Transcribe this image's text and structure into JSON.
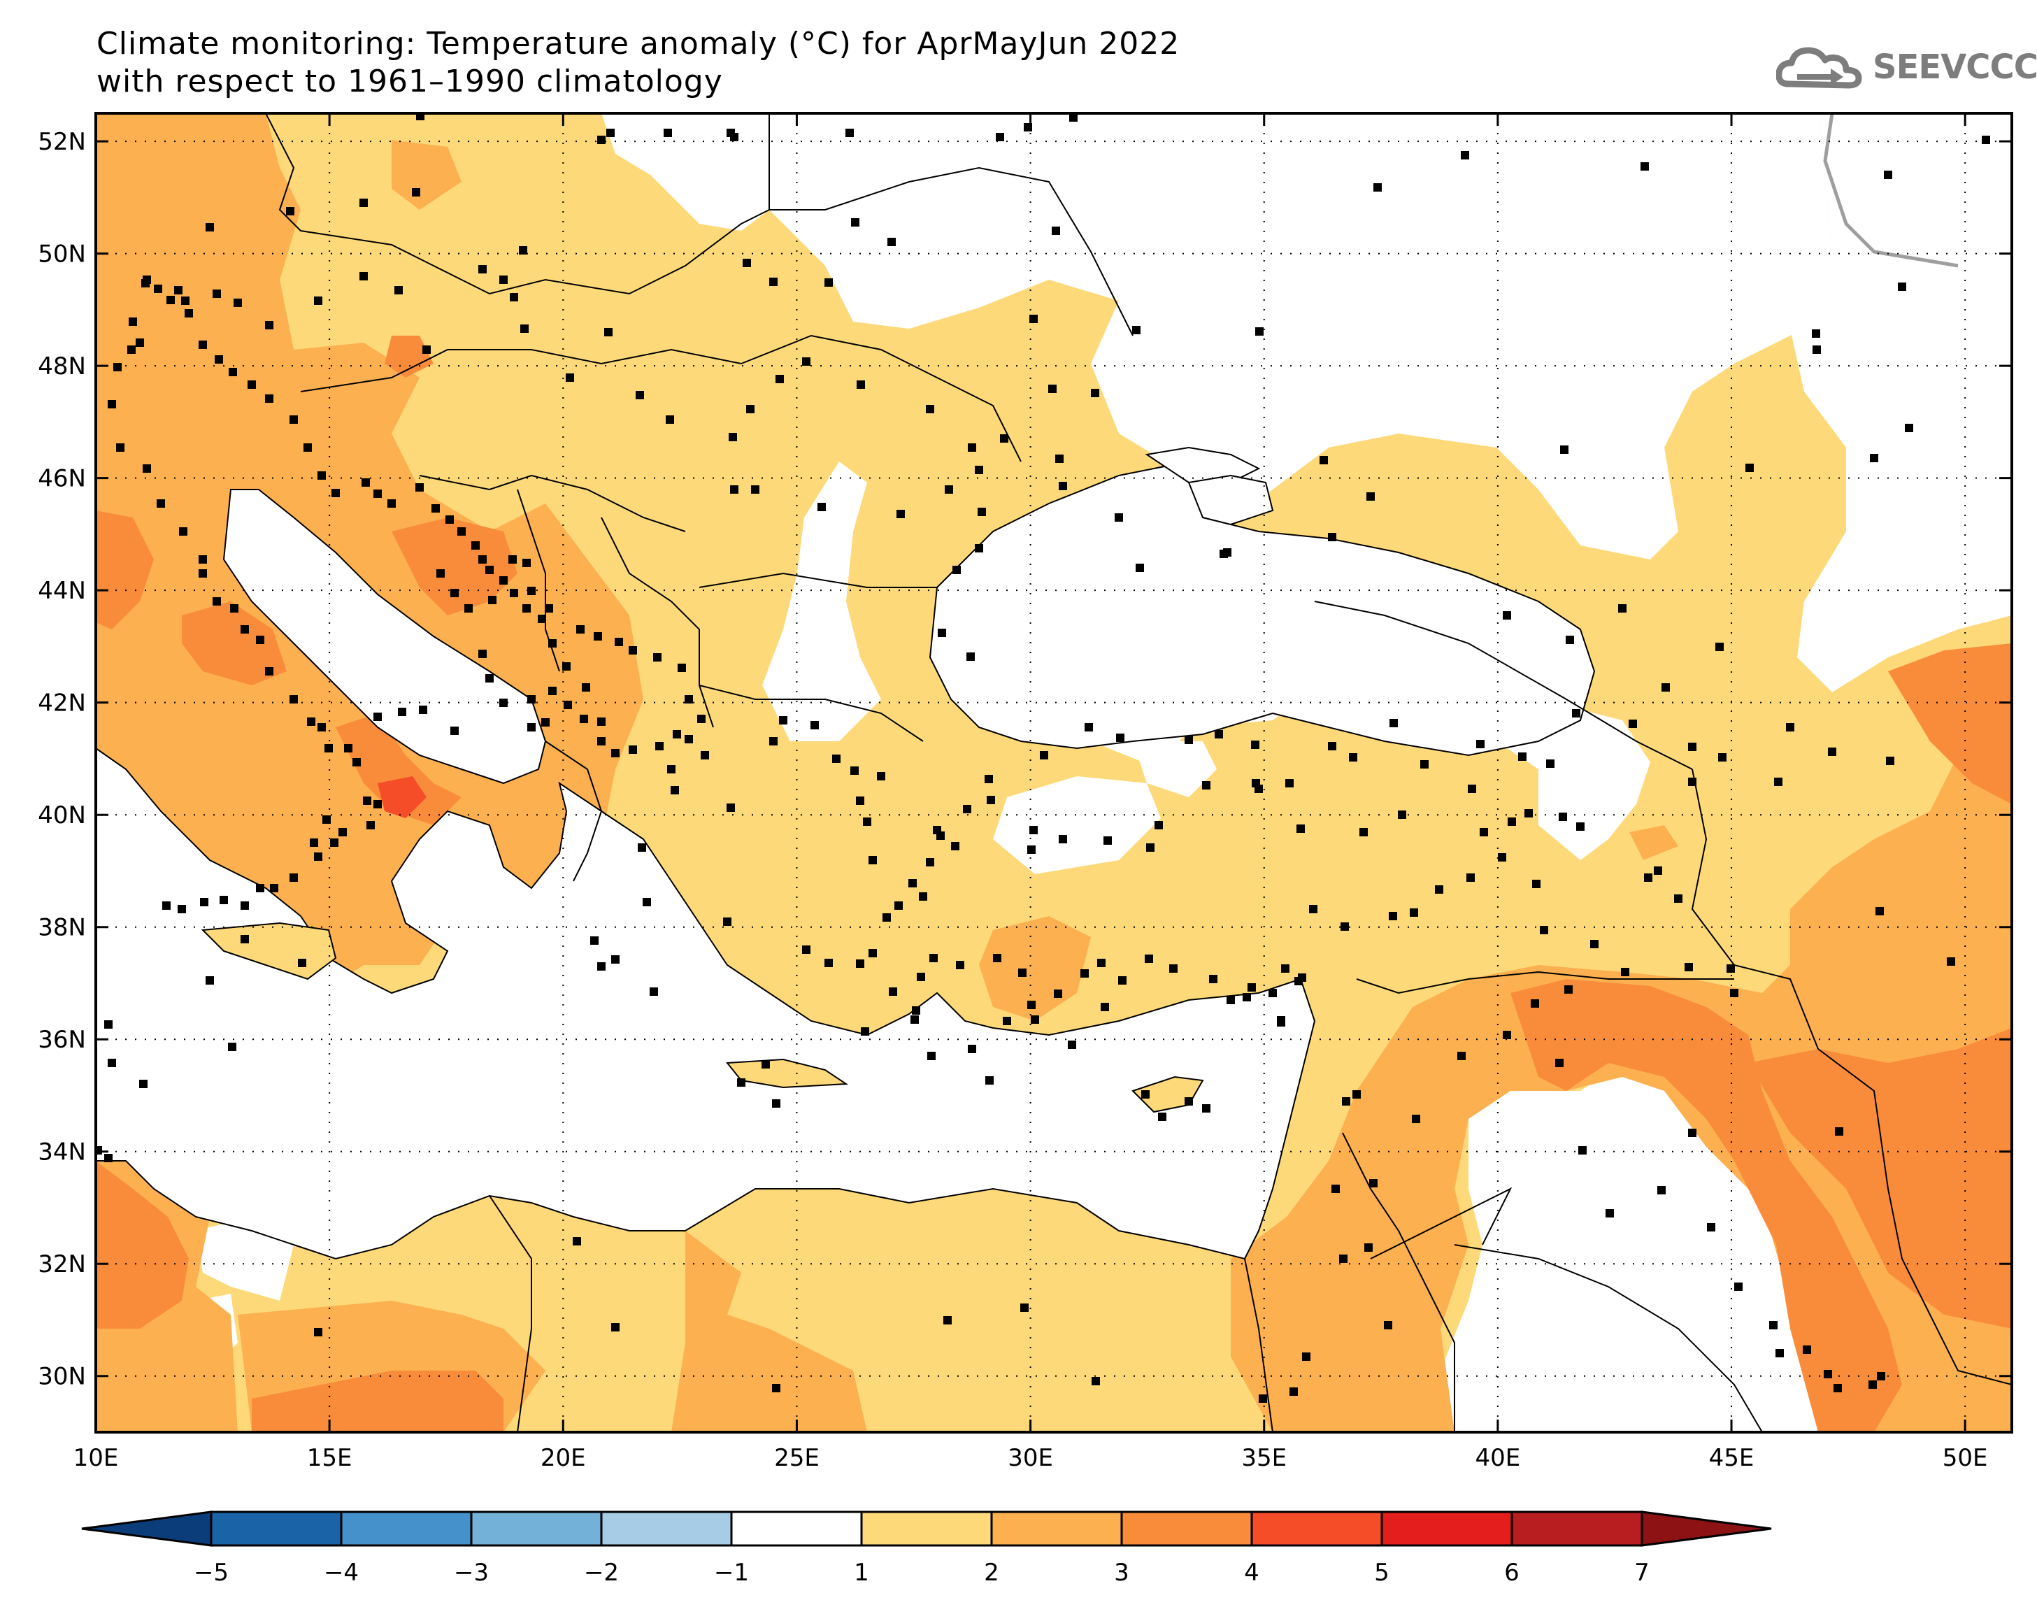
{
  "title": {
    "line1": "Climate monitoring: Temperature anomaly (°C) for AprMayJun 2022",
    "line2": "with respect to 1961–1990 climatology"
  },
  "logo": {
    "text": "SEEVCCC",
    "icon": "cloud-arrow-icon"
  },
  "map": {
    "lon_range": [
      10,
      51
    ],
    "lat_range": [
      29,
      52.5
    ],
    "x_ticks": [
      {
        "value": 10,
        "label": "10E"
      },
      {
        "value": 15,
        "label": "15E"
      },
      {
        "value": 20,
        "label": "20E"
      },
      {
        "value": 25,
        "label": "25E"
      },
      {
        "value": 30,
        "label": "30E"
      },
      {
        "value": 35,
        "label": "35E"
      },
      {
        "value": 40,
        "label": "40E"
      },
      {
        "value": 45,
        "label": "45E"
      },
      {
        "value": 50,
        "label": "50E"
      }
    ],
    "y_ticks": [
      {
        "value": 52,
        "label": "52N"
      },
      {
        "value": 50,
        "label": "50N"
      },
      {
        "value": 48,
        "label": "48N"
      },
      {
        "value": 46,
        "label": "46N"
      },
      {
        "value": 44,
        "label": "44N"
      },
      {
        "value": 42,
        "label": "42N"
      },
      {
        "value": 40,
        "label": "40N"
      },
      {
        "value": 38,
        "label": "38N"
      },
      {
        "value": 36,
        "label": "36N"
      },
      {
        "value": 34,
        "label": "34N"
      },
      {
        "value": 32,
        "label": "32N"
      },
      {
        "value": 30,
        "label": "30N"
      }
    ],
    "grid": "dotted",
    "colors": {
      "c1_2": "#fdd97a",
      "c2_3": "#fcb050",
      "c3_4": "#f98c3b",
      "c4_5": "#f54d28",
      "sea": "#ffffff",
      "station": "#000000",
      "border": "#000000"
    }
  },
  "colorbar": {
    "colors": [
      "#0b3d7a",
      "#1a63a6",
      "#4491cb",
      "#73b1d9",
      "#a6cde5",
      "#ffffff",
      "#fdd97a",
      "#fcb050",
      "#f98c3b",
      "#f54d28",
      "#e31e1c",
      "#b81d1f",
      "#8c1214"
    ],
    "labels": [
      "−5",
      "−4",
      "−3",
      "−2",
      "−1",
      "1",
      "2",
      "3",
      "4",
      "5",
      "6",
      "7"
    ]
  }
}
